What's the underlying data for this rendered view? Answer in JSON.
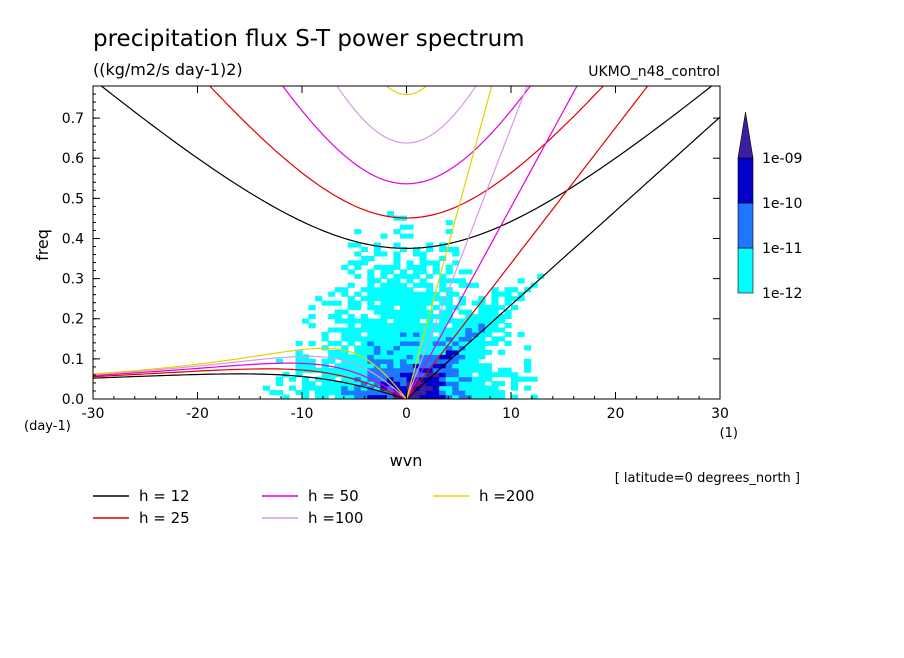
{
  "chart_data": {
    "type": "heatmap",
    "title": "precipitation flux S-T power spectrum",
    "subtitle": "((kg/m2/s day-1)2)",
    "run_label": "UKMO_n48_control",
    "xlabel": "wvn",
    "ylabel": "freq",
    "x_unit": "(1)",
    "y_unit": "(day-1)",
    "xlim": [
      -30,
      30
    ],
    "ylim": [
      0,
      0.78
    ],
    "x_ticks": [
      -30,
      -20,
      -10,
      0,
      10,
      20,
      30
    ],
    "y_ticks": [
      0.0,
      0.1,
      0.2,
      0.3,
      0.4,
      0.5,
      0.6,
      0.7
    ],
    "x_tick_labels": [
      "-30",
      "-20",
      "-10",
      "0",
      "10",
      "20",
      "30"
    ],
    "y_tick_labels": [
      "0.0",
      "0.1",
      "0.2",
      "0.3",
      "0.4",
      "0.5",
      "0.6",
      "0.7"
    ],
    "footnote": "[ latitude=0 degrees_north ]",
    "colorbar": {
      "levels": [
        "1e-12",
        "1e-11",
        "1e-10",
        "1e-09"
      ],
      "colors": [
        "#00ffff",
        "#1e78ff",
        "#0000c8",
        "#3c1ea0"
      ]
    },
    "contour_regions": [
      {
        "level": "1e-12",
        "description": "broad low-power background"
      },
      {
        "level": "1e-10",
        "x_range": [
          0,
          12
        ],
        "y_range": [
          0,
          0.3
        ]
      },
      {
        "level": "1e-09",
        "x_range": [
          1,
          6
        ],
        "y_range": [
          0,
          0.05
        ]
      }
    ],
    "dispersion_curves": {
      "equivalent_depths": [
        {
          "label": "h = 12",
          "h": 12,
          "color": "#000000"
        },
        {
          "label": "h = 25",
          "h": 25,
          "color": "#e00000"
        },
        {
          "label": "h = 50",
          "h": 50,
          "color": "#e000e0"
        },
        {
          "label": "h =100",
          "h": 100,
          "color": "#d898e8"
        },
        {
          "label": "h =200",
          "h": 200,
          "color": "#e8d000"
        }
      ],
      "families": [
        "kelvin",
        "rossby",
        "inertia_gravity_n1"
      ]
    }
  }
}
